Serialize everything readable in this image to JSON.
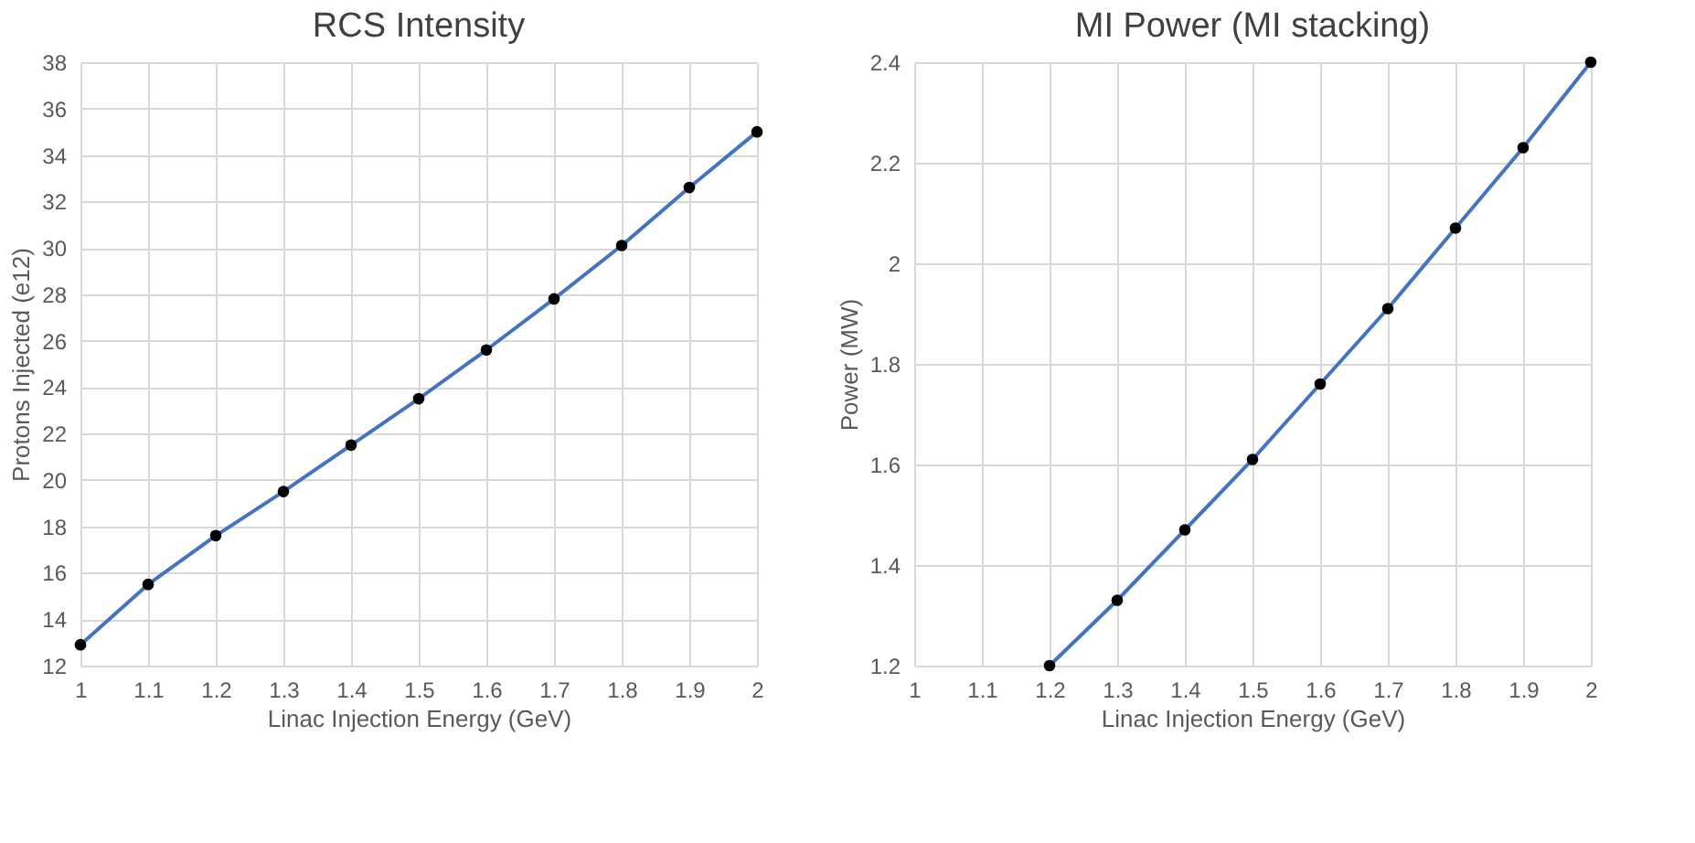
{
  "chart_data": [
    {
      "type": "line",
      "title": "RCS Intensity",
      "xlabel": "Linac Injection Energy (GeV)",
      "ylabel": "Protons Injected (e12)",
      "x": [
        1,
        1.1,
        1.2,
        1.3,
        1.4,
        1.5,
        1.6,
        1.7,
        1.8,
        1.9,
        2
      ],
      "series": [
        {
          "color": "#4472c4",
          "values": [
            12.9,
            15.5,
            17.6,
            19.5,
            21.5,
            23.5,
            25.6,
            27.8,
            30.1,
            32.6,
            35.0
          ]
        }
      ],
      "xlim": [
        1,
        2
      ],
      "xticks": [
        1,
        1.1,
        1.2,
        1.3,
        1.4,
        1.5,
        1.6,
        1.7,
        1.8,
        1.9,
        2
      ],
      "ylim": [
        12,
        38
      ],
      "yticks": [
        12,
        14,
        16,
        18,
        20,
        22,
        24,
        26,
        28,
        30,
        32,
        34,
        36,
        38
      ],
      "grid": true,
      "marker": "circle",
      "line_style": "solid"
    },
    {
      "type": "line",
      "title": "MI Power (MI stacking)",
      "xlabel": "Linac Injection Energy (GeV)",
      "ylabel": "Power (MW)",
      "x": [
        1.2,
        1.3,
        1.4,
        1.5,
        1.6,
        1.7,
        1.8,
        1.9,
        2
      ],
      "series": [
        {
          "color": "#4472c4",
          "values": [
            1.2,
            1.33,
            1.47,
            1.61,
            1.76,
            1.91,
            2.07,
            2.23,
            2.4
          ]
        }
      ],
      "xlim": [
        1,
        2
      ],
      "xticks": [
        1,
        1.1,
        1.2,
        1.3,
        1.4,
        1.5,
        1.6,
        1.7,
        1.8,
        1.9,
        2
      ],
      "ylim": [
        1.2,
        2.4
      ],
      "yticks": [
        1.2,
        1.4,
        1.6,
        1.8,
        2,
        2.2,
        2.4
      ],
      "grid": true,
      "marker": "circle",
      "line_style": "solid"
    }
  ]
}
